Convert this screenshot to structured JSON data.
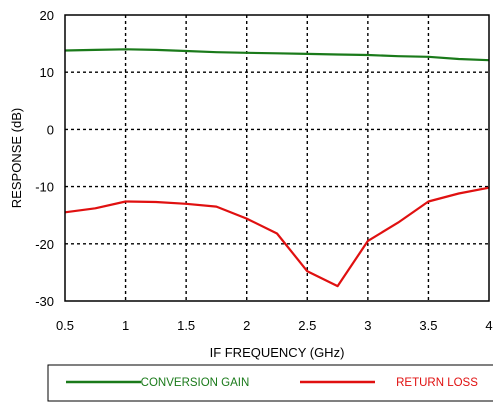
{
  "chart_data": {
    "type": "line",
    "title": "",
    "xlabel": "IF FREQUENCY (GHz)",
    "ylabel": "RESPONSE (dB)",
    "xlim": [
      0.5,
      4
    ],
    "ylim": [
      -30,
      20
    ],
    "x_ticks": [
      0.5,
      1,
      1.5,
      2,
      2.5,
      3,
      3.5,
      4
    ],
    "x_tick_labels": [
      "0.5",
      "1",
      "1.5",
      "2",
      "2.5",
      "3",
      "3.5",
      "4"
    ],
    "y_ticks": [
      -30,
      -20,
      -10,
      0,
      10,
      20
    ],
    "y_tick_labels": [
      "-30",
      "-20",
      "-10",
      "0",
      "10",
      "20"
    ],
    "grid": true,
    "grid_style": "dotted",
    "legend_position": "bottom",
    "series": [
      {
        "name": "CONVERSION GAIN",
        "color": "#1a7a1a",
        "x": [
          0.5,
          0.75,
          1,
          1.25,
          1.5,
          1.75,
          2,
          2.25,
          2.5,
          2.75,
          3,
          3.25,
          3.5,
          3.75,
          4
        ],
        "y": [
          13.8,
          13.9,
          14.0,
          13.9,
          13.7,
          13.5,
          13.4,
          13.3,
          13.2,
          13.1,
          13.0,
          12.8,
          12.7,
          12.3,
          12.1
        ]
      },
      {
        "name": "RETURN LOSS",
        "color": "#e01010",
        "x": [
          0.5,
          0.75,
          1,
          1.25,
          1.5,
          1.75,
          2,
          2.25,
          2.5,
          2.75,
          3,
          3.25,
          3.5,
          3.75,
          4
        ],
        "y": [
          -14.5,
          -13.8,
          -12.6,
          -12.7,
          -13.0,
          -13.5,
          -15.6,
          -18.2,
          -24.8,
          -27.4,
          -19.5,
          -16.3,
          -12.6,
          -11.2,
          -10.2
        ]
      }
    ]
  }
}
